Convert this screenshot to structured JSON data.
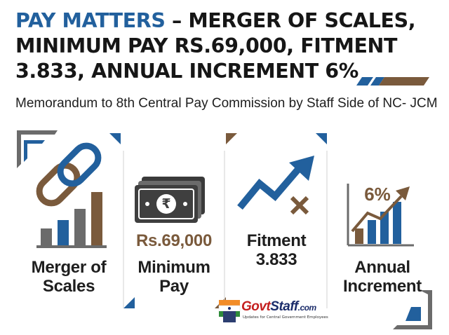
{
  "header": {
    "title_accent": "PAY MATTERS",
    "title_line1_rest": " – MERGER OF SCALES,",
    "title_line2": "MINIMUM PAY RS.69,000, FITMENT",
    "title_line3": "3.833, ANNUAL INCREMENT 6%",
    "subtitle": "Memorandum to 8th Central Pay Commission by Staff Side of NC- JCM"
  },
  "cards": [
    {
      "id": "merger",
      "label_line1": "Merger of",
      "label_line2": "Scales",
      "icon": "chain-link-bar-chart-icon"
    },
    {
      "id": "minimum-pay",
      "value": "Rs.69,000",
      "label_line1": "Minimum",
      "label_line2": "Pay",
      "icon": "rupee-banknote-icon",
      "currency_symbol": "₹"
    },
    {
      "id": "fitment",
      "label_line1": "Fitment",
      "label_line2": "3.833",
      "icon": "rising-arrow-multiply-icon"
    },
    {
      "id": "increment",
      "value": "6%",
      "label_line1": "Annual",
      "label_line2": "Increment",
      "icon": "growth-chart-arrow-icon"
    }
  ],
  "logo": {
    "brand_part1": "Govt",
    "brand_part2": "Staff",
    "brand_part3": ".com",
    "tagline": "Updates for Central Government Employees",
    "icon": "indian-flag-building-icon"
  },
  "colors": {
    "blue": "#22609d",
    "brown": "#7a5a3c",
    "gray": "#6b6b6b",
    "dark": "#1e1e1e"
  }
}
